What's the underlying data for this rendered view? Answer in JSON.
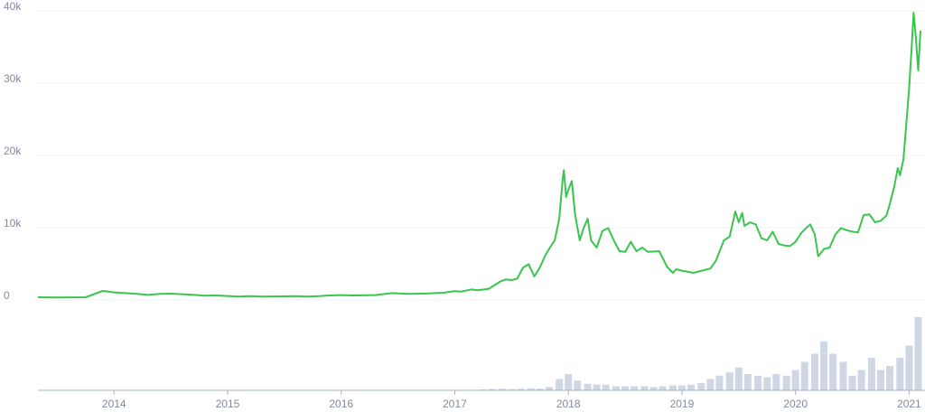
{
  "chart_data": [
    {
      "type": "line",
      "color": "#3ac54e",
      "x": [
        2013.33,
        2013.5,
        2013.75,
        2013.9,
        2013.95,
        2014.0,
        2014.1,
        2014.2,
        2014.3,
        2014.4,
        2014.5,
        2014.6,
        2014.7,
        2014.8,
        2014.9,
        2015.0,
        2015.1,
        2015.2,
        2015.3,
        2015.5,
        2015.6,
        2015.7,
        2015.8,
        2015.9,
        2016.0,
        2016.1,
        2016.3,
        2016.45,
        2016.5,
        2016.6,
        2016.75,
        2016.9,
        2017.0,
        2017.05,
        2017.15,
        2017.2,
        2017.3,
        2017.4,
        2017.45,
        2017.5,
        2017.55,
        2017.6,
        2017.65,
        2017.7,
        2017.75,
        2017.8,
        2017.85,
        2017.88,
        2017.92,
        2017.95,
        2017.96,
        2017.98,
        2018.0,
        2018.03,
        2018.06,
        2018.1,
        2018.13,
        2018.17,
        2018.2,
        2018.25,
        2018.3,
        2018.35,
        2018.4,
        2018.45,
        2018.5,
        2018.55,
        2018.6,
        2018.65,
        2018.7,
        2018.8,
        2018.87,
        2018.92,
        2018.95,
        2019.0,
        2019.1,
        2019.2,
        2019.25,
        2019.3,
        2019.37,
        2019.42,
        2019.47,
        2019.5,
        2019.53,
        2019.55,
        2019.6,
        2019.65,
        2019.7,
        2019.75,
        2019.8,
        2019.85,
        2019.9,
        2019.95,
        2020.0,
        2020.05,
        2020.1,
        2020.13,
        2020.17,
        2020.2,
        2020.25,
        2020.3,
        2020.35,
        2020.4,
        2020.45,
        2020.5,
        2020.55,
        2020.6,
        2020.65,
        2020.7,
        2020.75,
        2020.8,
        2020.83,
        2020.87,
        2020.9,
        2020.92,
        2020.95,
        2020.97,
        2021.0,
        2021.02,
        2021.04,
        2021.06,
        2021.08,
        2021.1
      ],
      "values": [
        130,
        100,
        130,
        1000,
        900,
        800,
        700,
        600,
        450,
        600,
        620,
        550,
        450,
        350,
        370,
        300,
        220,
        270,
        230,
        250,
        280,
        230,
        270,
        380,
        430,
        380,
        420,
        700,
        650,
        600,
        640,
        750,
        960,
        900,
        1200,
        1100,
        1300,
        2300,
        2600,
        2500,
        2700,
        4200,
        4700,
        3000,
        4300,
        6000,
        7300,
        8000,
        11000,
        16500,
        17700,
        14000,
        15000,
        16200,
        11500,
        8000,
        9500,
        11000,
        8000,
        7000,
        9300,
        9700,
        8000,
        6500,
        6400,
        7800,
        6500,
        7000,
        6400,
        6500,
        4300,
        3500,
        4000,
        3800,
        3500,
        3900,
        4100,
        5200,
        8000,
        8500,
        12000,
        10500,
        11800,
        10000,
        10500,
        10200,
        8300,
        8000,
        9200,
        7500,
        7300,
        7200,
        7800,
        9000,
        9800,
        10200,
        8800,
        5800,
        6800,
        7000,
        8800,
        9700,
        9400,
        9200,
        9100,
        11500,
        11600,
        10500,
        10700,
        11400,
        13000,
        15500,
        18000,
        17000,
        19200,
        23000,
        29000,
        34000,
        39500,
        36000,
        31500,
        37000
      ],
      "xlim": [
        2013.33,
        2021.14
      ],
      "ylim": [
        0,
        40000
      ],
      "yticks": [
        0,
        {
          "value": 10000,
          "label": "10k"
        },
        {
          "value": 20000,
          "label": "20k"
        },
        {
          "value": 30000,
          "label": "30k"
        },
        {
          "value": 40000,
          "label": "40k"
        }
      ],
      "grid": true
    },
    {
      "type": "bar",
      "color": "#cfd6e4",
      "x": [
        2013.92,
        2014.5,
        2015.5,
        2016.5,
        2017.0,
        2017.25,
        2017.33,
        2017.42,
        2017.5,
        2017.58,
        2017.67,
        2017.75,
        2017.83,
        2017.92,
        2018.0,
        2018.08,
        2018.17,
        2018.25,
        2018.33,
        2018.42,
        2018.5,
        2018.58,
        2018.67,
        2018.75,
        2018.83,
        2018.92,
        2019.0,
        2019.08,
        2019.17,
        2019.25,
        2019.33,
        2019.42,
        2019.5,
        2019.58,
        2019.67,
        2019.75,
        2019.83,
        2019.92,
        2020.0,
        2020.08,
        2020.17,
        2020.25,
        2020.33,
        2020.42,
        2020.5,
        2020.58,
        2020.67,
        2020.75,
        2020.83,
        2020.92,
        2021.0,
        2021.08
      ],
      "values": [
        0.3,
        0.1,
        0.1,
        0.2,
        0.5,
        1,
        1.5,
        2,
        1.5,
        2,
        2.5,
        2,
        4,
        14,
        20,
        12,
        8,
        7,
        7,
        5,
        5,
        5,
        5,
        4,
        5,
        6,
        6,
        7,
        9,
        14,
        18,
        22,
        28,
        20,
        18,
        16,
        20,
        18,
        25,
        35,
        45,
        60,
        45,
        35,
        18,
        25,
        40,
        25,
        30,
        40,
        55,
        90
      ],
      "xlim": [
        2013.33,
        2021.14
      ],
      "ylim": [
        0,
        100
      ],
      "xticks": [
        2014,
        2015,
        2016,
        2017,
        2018,
        2019,
        2020,
        2021
      ]
    }
  ]
}
